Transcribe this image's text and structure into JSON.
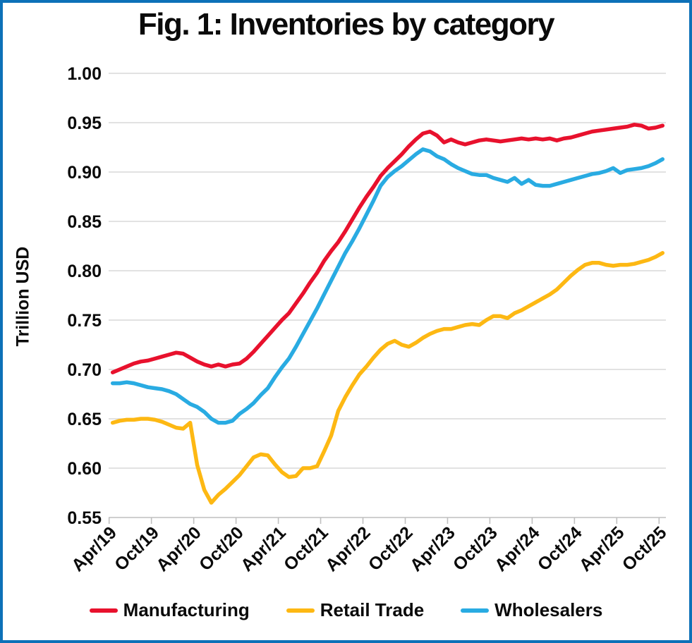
{
  "title": "Fig. 1: Inventories by category",
  "y_axis_title": "Trillion USD",
  "colors": {
    "manufacturing": "#e8112d",
    "retail_trade": "#fdb813",
    "wholesalers": "#29abe2",
    "frame_border": "#0d71b8",
    "gridline": "#d9d9d9",
    "axis_line": "#bfbfbf",
    "text": "#0a0a0a"
  },
  "legend": {
    "items": [
      {
        "label": "Manufacturing",
        "color": "#e8112d"
      },
      {
        "label": "Retail Trade",
        "color": "#fdb813"
      },
      {
        "label": "Wholesalers",
        "color": "#29abe2"
      }
    ]
  },
  "chart_data": {
    "type": "line",
    "title": "Fig. 1: Inventories by category",
    "xlabel": "",
    "ylabel": "Trillion USD",
    "ylim": [
      0.55,
      1.0
    ],
    "ytick_step": 0.05,
    "ytick_labels": [
      "1.00",
      "0.95",
      "0.90",
      "0.85",
      "0.80",
      "0.75",
      "0.70",
      "0.65",
      "0.60",
      "0.55"
    ],
    "xtick_labels": [
      "Apr/19",
      "Oct/19",
      "Apr/20",
      "Oct/20",
      "Apr/21",
      "Oct/21",
      "Apr/22",
      "Oct/22",
      "Apr/23",
      "Oct/23",
      "Apr/24",
      "Oct/24",
      "Apr/25",
      "Oct/25"
    ],
    "points_per_tick": 6,
    "x_frequency": "monthly",
    "x_start": "Apr/19",
    "x_end": "Oct/25",
    "grid": true,
    "legend_position": "bottom",
    "series": [
      {
        "name": "Manufacturing",
        "color": "#e8112d",
        "values": [
          0.697,
          0.7,
          0.703,
          0.706,
          0.708,
          0.709,
          0.711,
          0.713,
          0.715,
          0.717,
          0.716,
          0.712,
          0.708,
          0.705,
          0.703,
          0.705,
          0.703,
          0.705,
          0.706,
          0.711,
          0.718,
          0.726,
          0.734,
          0.742,
          0.75,
          0.757,
          0.767,
          0.777,
          0.788,
          0.798,
          0.81,
          0.82,
          0.829,
          0.84,
          0.852,
          0.864,
          0.875,
          0.885,
          0.896,
          0.904,
          0.911,
          0.918,
          0.926,
          0.933,
          0.939,
          0.941,
          0.937,
          0.93,
          0.933,
          0.93,
          0.928,
          0.93,
          0.932,
          0.933,
          0.932,
          0.931,
          0.932,
          0.933,
          0.934,
          0.933,
          0.934,
          0.933,
          0.934,
          0.932,
          0.934,
          0.935,
          0.937,
          0.939,
          0.941,
          0.942,
          0.943,
          0.944,
          0.945,
          0.946,
          0.948,
          0.947,
          0.944,
          0.945,
          0.947
        ]
      },
      {
        "name": "Retail Trade",
        "color": "#fdb813",
        "values": [
          0.646,
          0.648,
          0.649,
          0.649,
          0.65,
          0.65,
          0.649,
          0.647,
          0.644,
          0.641,
          0.64,
          0.646,
          0.603,
          0.578,
          0.565,
          0.573,
          0.579,
          0.586,
          0.593,
          0.602,
          0.611,
          0.614,
          0.613,
          0.604,
          0.596,
          0.591,
          0.592,
          0.6,
          0.6,
          0.602,
          0.617,
          0.633,
          0.658,
          0.672,
          0.684,
          0.695,
          0.703,
          0.712,
          0.72,
          0.726,
          0.729,
          0.725,
          0.723,
          0.727,
          0.732,
          0.736,
          0.739,
          0.741,
          0.741,
          0.743,
          0.745,
          0.746,
          0.745,
          0.75,
          0.754,
          0.754,
          0.752,
          0.757,
          0.76,
          0.764,
          0.768,
          0.772,
          0.776,
          0.781,
          0.788,
          0.795,
          0.801,
          0.806,
          0.808,
          0.808,
          0.806,
          0.805,
          0.806,
          0.806,
          0.807,
          0.809,
          0.811,
          0.814,
          0.818
        ]
      },
      {
        "name": "Wholesalers",
        "color": "#29abe2",
        "values": [
          0.686,
          0.686,
          0.687,
          0.686,
          0.684,
          0.682,
          0.681,
          0.68,
          0.678,
          0.675,
          0.67,
          0.665,
          0.662,
          0.657,
          0.65,
          0.646,
          0.646,
          0.648,
          0.655,
          0.66,
          0.666,
          0.674,
          0.681,
          0.692,
          0.702,
          0.711,
          0.723,
          0.736,
          0.749,
          0.762,
          0.776,
          0.79,
          0.804,
          0.818,
          0.83,
          0.843,
          0.857,
          0.871,
          0.886,
          0.895,
          0.901,
          0.906,
          0.912,
          0.918,
          0.923,
          0.921,
          0.916,
          0.913,
          0.908,
          0.904,
          0.901,
          0.898,
          0.897,
          0.897,
          0.894,
          0.892,
          0.89,
          0.894,
          0.888,
          0.892,
          0.887,
          0.886,
          0.886,
          0.888,
          0.89,
          0.892,
          0.894,
          0.896,
          0.898,
          0.899,
          0.901,
          0.904,
          0.899,
          0.902,
          0.903,
          0.904,
          0.906,
          0.909,
          0.913
        ]
      }
    ]
  }
}
